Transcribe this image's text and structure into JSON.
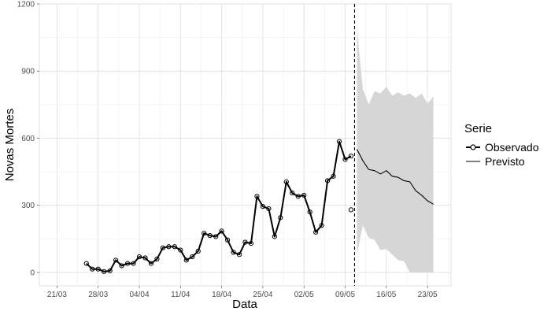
{
  "chart_data": {
    "type": "line",
    "xlabel": "Data",
    "ylabel": "Novas Mortes",
    "x_ticks": [
      "21/03",
      "28/03",
      "04/04",
      "11/04",
      "18/04",
      "25/04",
      "02/05",
      "09/05",
      "16/05",
      "23/05"
    ],
    "y_ticks": [
      "0",
      "300",
      "600",
      "900",
      "1200"
    ],
    "ylim": [
      -60,
      1200
    ],
    "grid": true,
    "forecast_start": "2020-05-11",
    "legend": {
      "title": "Serie",
      "position": "right",
      "items": [
        "Observado",
        "Previsto"
      ]
    },
    "series": [
      {
        "name": "Observado",
        "color": "#000000",
        "markers": "open-circle",
        "x": [
          "2020-03-26",
          "2020-03-27",
          "2020-03-28",
          "2020-03-29",
          "2020-03-30",
          "2020-03-31",
          "2020-04-01",
          "2020-04-02",
          "2020-04-03",
          "2020-04-04",
          "2020-04-05",
          "2020-04-06",
          "2020-04-07",
          "2020-04-08",
          "2020-04-09",
          "2020-04-10",
          "2020-04-11",
          "2020-04-12",
          "2020-04-13",
          "2020-04-14",
          "2020-04-15",
          "2020-04-16",
          "2020-04-17",
          "2020-04-18",
          "2020-04-19",
          "2020-04-20",
          "2020-04-21",
          "2020-04-22",
          "2020-04-23",
          "2020-04-24",
          "2020-04-25",
          "2020-04-26",
          "2020-04-27",
          "2020-04-28",
          "2020-04-29",
          "2020-04-30",
          "2020-05-01",
          "2020-05-02",
          "2020-05-03",
          "2020-05-04",
          "2020-05-05",
          "2020-05-06",
          "2020-05-07",
          "2020-05-08",
          "2020-05-09",
          "2020-05-10"
        ],
        "y": [
          40,
          15,
          15,
          4,
          7,
          55,
          30,
          40,
          40,
          70,
          65,
          40,
          60,
          110,
          115,
          115,
          100,
          55,
          70,
          95,
          175,
          165,
          160,
          185,
          145,
          90,
          80,
          135,
          130,
          340,
          295,
          285,
          160,
          245,
          405,
          355,
          340,
          345,
          270,
          180,
          210,
          410,
          430,
          585,
          505,
          520
        ]
      },
      {
        "name": "Previsto",
        "color": "#000000",
        "x": [
          "2020-05-10",
          "2020-05-11",
          "2020-05-12",
          "2020-05-13",
          "2020-05-14",
          "2020-05-15",
          "2020-05-16",
          "2020-05-17",
          "2020-05-18",
          "2020-05-19",
          "2020-05-20",
          "2020-05-21",
          "2020-05-22",
          "2020-05-23",
          "2020-05-24",
          "2020-05-25"
        ],
        "y": [
          280,
          550,
          500,
          460,
          455,
          440,
          455,
          430,
          425,
          410,
          405,
          365,
          345,
          320,
          305,
          null
        ],
        "band_upper": [
          null,
          1090,
          820,
          750,
          810,
          800,
          830,
          790,
          805,
          790,
          800,
          780,
          800,
          755,
          785,
          null
        ],
        "band_lower": [
          null,
          80,
          210,
          155,
          145,
          100,
          105,
          80,
          55,
          50,
          0,
          0,
          0,
          0,
          0,
          null
        ]
      }
    ]
  }
}
